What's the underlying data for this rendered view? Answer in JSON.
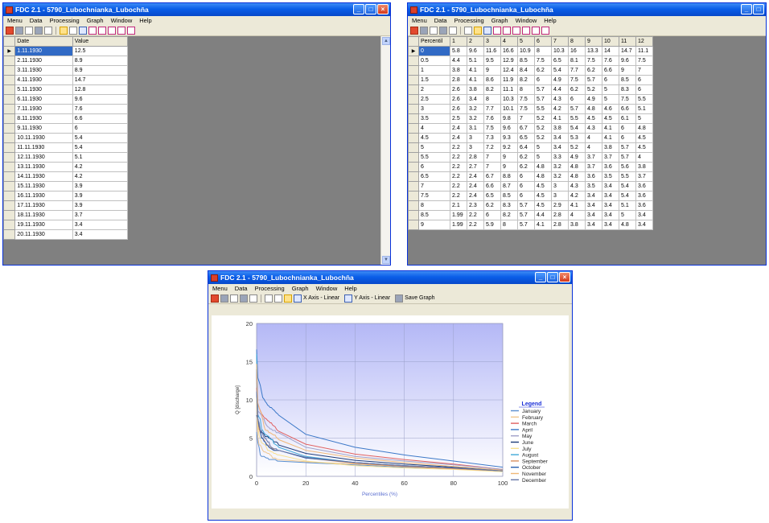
{
  "windows": {
    "data_window": {
      "title": "FDC 2.1 - 5790_Lubochnianka_Lubochňa",
      "menu": [
        "Menu",
        "Data",
        "Processing",
        "Graph",
        "Window",
        "Help"
      ],
      "columns": [
        "Date",
        "Value"
      ],
      "rows": [
        [
          "1.11.1930",
          "12.5"
        ],
        [
          "2.11.1930",
          "8.9"
        ],
        [
          "3.11.1930",
          "8.9"
        ],
        [
          "4.11.1930",
          "14.7"
        ],
        [
          "5.11.1930",
          "12.8"
        ],
        [
          "6.11.1930",
          "9.6"
        ],
        [
          "7.11.1930",
          "7.6"
        ],
        [
          "8.11.1930",
          "6.6"
        ],
        [
          "9.11.1930",
          "6"
        ],
        [
          "10.11.1930",
          "5.4"
        ],
        [
          "11.11.1930",
          "5.4"
        ],
        [
          "12.11.1930",
          "5.1"
        ],
        [
          "13.11.1930",
          "4.2"
        ],
        [
          "14.11.1930",
          "4.2"
        ],
        [
          "15.11.1930",
          "3.9"
        ],
        [
          "16.11.1930",
          "3.9"
        ],
        [
          "17.11.1930",
          "3.9"
        ],
        [
          "18.11.1930",
          "3.7"
        ],
        [
          "19.11.1930",
          "3.4"
        ],
        [
          "20.11.1930",
          "3.4"
        ]
      ]
    },
    "percentile_window": {
      "title": "FDC 2.1 - 5790_Lubochnianka_Lubochňa",
      "menu": [
        "Menu",
        "Data",
        "Processing",
        "Graph",
        "Window",
        "Help"
      ],
      "columns": [
        "Percentil",
        "1",
        "2",
        "3",
        "4",
        "5",
        "6",
        "7",
        "8",
        "9",
        "10",
        "11",
        "12"
      ],
      "rows": [
        [
          "0",
          "5.8",
          "9.6",
          "11.6",
          "16.6",
          "10.9",
          "8",
          "10.3",
          "16",
          "13.3",
          "14",
          "14.7",
          "11.1"
        ],
        [
          "0.5",
          "4.4",
          "5.1",
          "9.5",
          "12.9",
          "8.5",
          "7.5",
          "6.5",
          "8.1",
          "7.5",
          "7.6",
          "9.6",
          "7.5"
        ],
        [
          "1",
          "3.8",
          "4.1",
          "9",
          "12.4",
          "8.4",
          "6.2",
          "5.4",
          "7.7",
          "6.2",
          "6.6",
          "9",
          "7"
        ],
        [
          "1.5",
          "2.8",
          "4.1",
          "8.6",
          "11.9",
          "8.2",
          "6",
          "4.9",
          "7.5",
          "5.7",
          "6",
          "8.5",
          "6"
        ],
        [
          "2",
          "2.6",
          "3.8",
          "8.2",
          "11.1",
          "8",
          "5.7",
          "4.4",
          "6.2",
          "5.2",
          "5",
          "8.3",
          "6"
        ],
        [
          "2.5",
          "2.6",
          "3.4",
          "8",
          "10.3",
          "7.5",
          "5.7",
          "4.3",
          "6",
          "4.9",
          "5",
          "7.5",
          "5.5"
        ],
        [
          "3",
          "2.6",
          "3.2",
          "7.7",
          "10.1",
          "7.5",
          "5.5",
          "4.2",
          "5.7",
          "4.8",
          "4.6",
          "6.6",
          "5.1"
        ],
        [
          "3.5",
          "2.5",
          "3.2",
          "7.6",
          "9.8",
          "7",
          "5.2",
          "4.1",
          "5.5",
          "4.5",
          "4.5",
          "6.1",
          "5"
        ],
        [
          "4",
          "2.4",
          "3.1",
          "7.5",
          "9.6",
          "6.7",
          "5.2",
          "3.8",
          "5.4",
          "4.3",
          "4.1",
          "6",
          "4.8"
        ],
        [
          "4.5",
          "2.4",
          "3",
          "7.3",
          "9.3",
          "6.5",
          "5.2",
          "3.4",
          "5.3",
          "4",
          "4.1",
          "6",
          "4.5"
        ],
        [
          "5",
          "2.2",
          "3",
          "7.2",
          "9.2",
          "6.4",
          "5",
          "3.4",
          "5.2",
          "4",
          "3.8",
          "5.7",
          "4.5"
        ],
        [
          "5.5",
          "2.2",
          "2.8",
          "7",
          "9",
          "6.2",
          "5",
          "3.3",
          "4.9",
          "3.7",
          "3.7",
          "5.7",
          "4"
        ],
        [
          "6",
          "2.2",
          "2.7",
          "7",
          "9",
          "6.2",
          "4.8",
          "3.2",
          "4.8",
          "3.7",
          "3.6",
          "5.6",
          "3.8"
        ],
        [
          "6.5",
          "2.2",
          "2.4",
          "6.7",
          "8.8",
          "6",
          "4.8",
          "3.2",
          "4.8",
          "3.6",
          "3.5",
          "5.5",
          "3.7"
        ],
        [
          "7",
          "2.2",
          "2.4",
          "6.6",
          "8.7",
          "6",
          "4.5",
          "3",
          "4.3",
          "3.5",
          "3.4",
          "5.4",
          "3.6"
        ],
        [
          "7.5",
          "2.2",
          "2.4",
          "6.5",
          "8.5",
          "6",
          "4.5",
          "3",
          "4.2",
          "3.4",
          "3.4",
          "5.4",
          "3.6"
        ],
        [
          "8",
          "2.1",
          "2.3",
          "6.2",
          "8.3",
          "5.7",
          "4.5",
          "2.9",
          "4.1",
          "3.4",
          "3.4",
          "5.1",
          "3.6"
        ],
        [
          "8.5",
          "1.99",
          "2.2",
          "6",
          "8.2",
          "5.7",
          "4.4",
          "2.8",
          "4",
          "3.4",
          "3.4",
          "5",
          "3.4"
        ],
        [
          "9",
          "1.99",
          "2.2",
          "5.9",
          "8",
          "5.7",
          "4.1",
          "2.8",
          "3.8",
          "3.4",
          "3.4",
          "4.8",
          "3.4"
        ]
      ]
    },
    "graph_window": {
      "title": "FDC 2.1 - 5790_Lubochnianka_Lubochňa",
      "menu": [
        "Menu",
        "Data",
        "Processing",
        "Graph",
        "Window",
        "Help"
      ],
      "toolbar": {
        "x_axis": "X Axis - Linear",
        "y_axis": "Y Axis - Linear",
        "save": "Save Graph"
      }
    }
  },
  "chart_data": {
    "type": "line",
    "xlabel": "Percentiles (%)",
    "ylabel": "Q [discharge]",
    "xlim": [
      0,
      100
    ],
    "ylim": [
      0,
      20
    ],
    "xticks": [
      "0",
      "20",
      "40",
      "60",
      "80",
      "100"
    ],
    "yticks": [
      "0",
      "5",
      "10",
      "15",
      "20"
    ],
    "grid": true,
    "legend": {
      "title": "Legend",
      "position": "right"
    },
    "x": [
      0,
      0.5,
      1,
      1.5,
      2,
      2.5,
      3,
      3.5,
      4,
      4.5,
      5,
      5.5,
      6,
      6.5,
      7,
      7.5,
      8,
      8.5,
      9,
      20,
      40,
      60,
      80,
      100
    ],
    "series": [
      {
        "name": "January",
        "color": "#5b8fd0",
        "values": [
          5.8,
          4.4,
          3.8,
          2.8,
          2.6,
          2.6,
          2.6,
          2.5,
          2.4,
          2.4,
          2.2,
          2.2,
          2.2,
          2.2,
          2.2,
          2.2,
          2.1,
          1.99,
          1.99,
          1.8,
          1.5,
          1.2,
          1.0,
          0.7
        ]
      },
      {
        "name": "February",
        "color": "#f0c890",
        "values": [
          9.6,
          5.1,
          4.1,
          4.1,
          3.8,
          3.4,
          3.2,
          3.2,
          3.1,
          3.0,
          3.0,
          2.8,
          2.7,
          2.4,
          2.4,
          2.4,
          2.3,
          2.2,
          2.2,
          1.9,
          1.6,
          1.3,
          1.0,
          0.7
        ]
      },
      {
        "name": "March",
        "color": "#e06060",
        "values": [
          11.6,
          9.5,
          9.0,
          8.6,
          8.2,
          8.0,
          7.7,
          7.6,
          7.5,
          7.3,
          7.2,
          7.0,
          7.0,
          6.7,
          6.6,
          6.5,
          6.2,
          6.0,
          5.9,
          4.2,
          2.9,
          2.2,
          1.6,
          0.9
        ]
      },
      {
        "name": "April",
        "color": "#3c78c8",
        "values": [
          16.6,
          12.9,
          12.4,
          11.9,
          11.1,
          10.3,
          10.1,
          9.8,
          9.6,
          9.3,
          9.2,
          9.0,
          9.0,
          8.8,
          8.7,
          8.5,
          8.3,
          8.2,
          8.0,
          5.5,
          3.8,
          2.8,
          2.0,
          1.2
        ]
      },
      {
        "name": "May",
        "color": "#a0a0c8",
        "values": [
          10.9,
          8.5,
          8.4,
          8.2,
          8.0,
          7.5,
          7.5,
          7.0,
          6.7,
          6.5,
          6.4,
          6.2,
          6.2,
          6.0,
          6.0,
          6.0,
          5.7,
          5.7,
          5.7,
          3.8,
          2.6,
          2.0,
          1.5,
          0.9
        ]
      },
      {
        "name": "June",
        "color": "#1e3c78",
        "values": [
          8.0,
          7.5,
          6.2,
          6.0,
          5.7,
          5.7,
          5.5,
          5.2,
          5.2,
          5.2,
          5.0,
          5.0,
          4.8,
          4.8,
          4.5,
          4.5,
          4.5,
          4.4,
          4.1,
          3.0,
          2.1,
          1.6,
          1.2,
          0.8
        ]
      },
      {
        "name": "July",
        "color": "#f8e090",
        "values": [
          10.3,
          6.5,
          5.4,
          4.9,
          4.4,
          4.3,
          4.2,
          4.1,
          3.8,
          3.4,
          3.4,
          3.3,
          3.2,
          3.2,
          3.0,
          3.0,
          2.9,
          2.8,
          2.8,
          2.0,
          1.4,
          1.1,
          0.9,
          0.6
        ]
      },
      {
        "name": "August",
        "color": "#40a8d8",
        "values": [
          16.0,
          8.1,
          7.7,
          7.5,
          6.2,
          6.0,
          5.7,
          5.5,
          5.4,
          5.3,
          5.2,
          4.9,
          4.8,
          4.8,
          4.3,
          4.2,
          4.1,
          4.0,
          3.8,
          2.6,
          1.8,
          1.4,
          1.1,
          0.7
        ]
      },
      {
        "name": "September",
        "color": "#d89060",
        "values": [
          13.3,
          7.5,
          6.2,
          5.7,
          5.2,
          4.9,
          4.8,
          4.5,
          4.3,
          4.0,
          4.0,
          3.7,
          3.7,
          3.6,
          3.5,
          3.4,
          3.4,
          3.4,
          3.4,
          2.4,
          1.7,
          1.3,
          1.0,
          0.7
        ]
      },
      {
        "name": "October",
        "color": "#2860b0",
        "values": [
          14.0,
          7.6,
          6.6,
          6.0,
          5.0,
          5.0,
          4.6,
          4.5,
          4.1,
          4.1,
          3.8,
          3.7,
          3.6,
          3.5,
          3.4,
          3.4,
          3.4,
          3.4,
          3.4,
          2.4,
          1.8,
          1.4,
          1.1,
          0.7
        ]
      },
      {
        "name": "November",
        "color": "#f0b878",
        "values": [
          14.7,
          9.6,
          9.0,
          8.5,
          8.3,
          7.5,
          6.6,
          6.1,
          6.0,
          6.0,
          5.7,
          5.7,
          5.6,
          5.5,
          5.4,
          5.4,
          5.1,
          5.0,
          4.8,
          3.4,
          2.4,
          1.8,
          1.3,
          0.8
        ]
      },
      {
        "name": "December",
        "color": "#6878a8",
        "values": [
          11.1,
          7.5,
          7.0,
          6.0,
          6.0,
          5.5,
          5.1,
          5.0,
          4.8,
          4.5,
          4.5,
          4.0,
          3.8,
          3.7,
          3.6,
          3.6,
          3.6,
          3.4,
          3.4,
          2.5,
          1.8,
          1.4,
          1.1,
          0.7
        ]
      }
    ]
  }
}
